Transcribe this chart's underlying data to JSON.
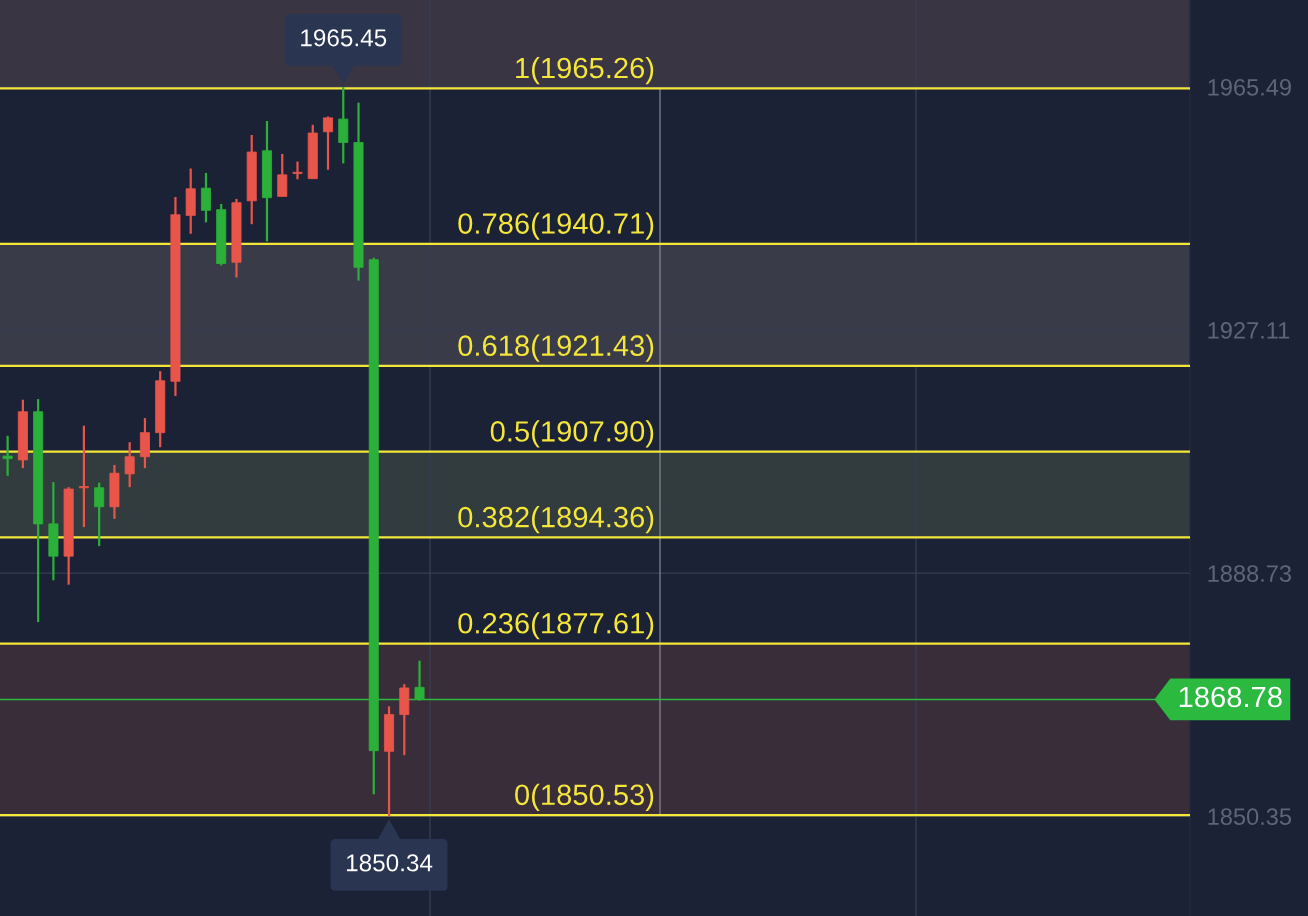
{
  "chart_data": {
    "type": "candlestick",
    "categories": [
      null,
      null,
      null,
      null,
      null,
      null,
      null,
      null,
      null,
      null,
      null,
      null,
      null,
      null,
      null,
      null,
      null,
      null,
      null,
      null,
      null,
      null,
      null,
      null,
      null,
      null,
      null,
      null,
      null,
      null,
      null,
      null,
      null,
      null,
      null,
      null,
      null,
      null,
      null,
      null,
      null,
      null,
      null,
      null,
      null,
      null,
      null,
      null,
      null,
      null,
      null,
      null,
      null,
      null,
      null,
      null,
      null,
      null,
      null,
      null,
      null,
      null,
      null,
      null,
      null,
      null,
      null,
      null,
      null,
      null,
      null,
      null,
      null,
      null,
      null,
      null,
      null,
      null
    ],
    "ohlc": [
      [
        1907.2,
        1910.4,
        1904.1,
        1906.8
      ],
      [
        1906.6,
        1916.1,
        1905.3,
        1914.2
      ],
      [
        1914.2,
        1916.2,
        1881.0,
        1896.5
      ],
      [
        1896.5,
        1903.1,
        1887.6,
        1891.4
      ],
      [
        1891.4,
        1902.3,
        1886.9,
        1902.0
      ],
      [
        1902.2,
        1912.0,
        1896.0,
        1902.4
      ],
      [
        1902.2,
        1903.0,
        1893.0,
        1899.2
      ],
      [
        1899.2,
        1905.8,
        1897.3,
        1904.5
      ],
      [
        1904.4,
        1909.4,
        1902.3,
        1907.1
      ],
      [
        1907.1,
        1913.2,
        1905.3,
        1910.9
      ],
      [
        1910.9,
        1920.6,
        1908.6,
        1919.1
      ],
      [
        1919.0,
        1948.1,
        1916.7,
        1945.3
      ],
      [
        1945.2,
        1952.6,
        1942.3,
        1949.4
      ],
      [
        1949.5,
        1951.9,
        1944.1,
        1946.0
      ],
      [
        1946.1,
        1947.0,
        1937.3,
        1937.6
      ],
      [
        1937.8,
        1947.8,
        1935.4,
        1947.2
      ],
      [
        1947.5,
        1957.9,
        1943.8,
        1955.2
      ],
      [
        1955.4,
        1960.1,
        1941.1,
        1948.0
      ],
      [
        1948.2,
        1954.9,
        1948.2,
        1951.6
      ],
      [
        1951.8,
        1953.7,
        1950.9,
        1952.0
      ],
      [
        1951.0,
        1959.5,
        1951.0,
        1958.2
      ],
      [
        1958.4,
        1960.8,
        1952.4,
        1960.6
      ],
      [
        1960.4,
        1965.45,
        1953.4,
        1956.7
      ],
      [
        1956.7,
        1963.0,
        1934.9,
        1937.0
      ],
      [
        1938.2,
        1938.5,
        1853.8,
        1860.7
      ],
      [
        1860.6,
        1867.7,
        1850.34,
        1866.4
      ],
      [
        1866.4,
        1871.2,
        1860.0,
        1870.6
      ],
      [
        1870.7,
        1874.9,
        1868.6,
        1868.78
      ],
      null,
      null,
      null,
      null,
      null,
      null,
      null,
      null,
      null,
      null,
      null,
      null,
      null,
      null,
      null,
      null,
      null,
      null,
      null,
      null,
      null,
      null,
      null,
      null,
      null,
      null,
      null,
      null,
      null,
      null,
      null,
      null,
      null,
      null,
      null,
      null,
      null,
      null,
      null,
      null,
      null,
      null,
      null,
      null,
      null,
      null,
      null,
      null,
      null,
      null
    ],
    "colors": [
      "#2bb03a",
      "#e8554a",
      "#2bb03a",
      "#2bb03a",
      "#e8554a",
      "#e8554a",
      "#2bb03a",
      "#e8554a",
      "#e8554a",
      "#e8554a",
      "#e8554a",
      "#e8554a",
      "#e8554a",
      "#2bb03a",
      "#2bb03a",
      "#e8554a",
      "#e8554a",
      "#2bb03a",
      "#e8554a",
      "#e8554a",
      "#e8554a",
      "#e8554a",
      "#2bb03a",
      "#2bb03a",
      "#2bb03a",
      "#e8554a",
      "#e8554a",
      "#2bb03a",
      null,
      null,
      null,
      null,
      null,
      null,
      null,
      null,
      null,
      null,
      null,
      null,
      null,
      null,
      null,
      null,
      null,
      null,
      null,
      null,
      null,
      null,
      null,
      null,
      null,
      null,
      null,
      null,
      null,
      null,
      null,
      null,
      null,
      null,
      null,
      null,
      null,
      null,
      null,
      null,
      null,
      null,
      null,
      null,
      null,
      null,
      null,
      null,
      null,
      null
    ],
    "ylim": [
      1834.6,
      1979.2
    ],
    "yticks": [
      1965.49,
      1927.11,
      1888.73,
      1850.35
    ],
    "tick_labels": "y",
    "grid": "y",
    "ref_lines": [
      {
        "axis": "y",
        "value": 1965.26,
        "label": "1(1965.26)",
        "color": "#f5e63a"
      },
      {
        "axis": "y",
        "value": 1940.71,
        "label": "0.786(1940.71)",
        "color": "#f5e63a"
      },
      {
        "axis": "y",
        "value": 1921.43,
        "label": "0.618(1921.43)",
        "color": "#f5e63a"
      },
      {
        "axis": "y",
        "value": 1907.9,
        "label": "0.5(1907.90)",
        "color": "#f5e63a"
      },
      {
        "axis": "y",
        "value": 1894.36,
        "label": "0.382(1894.36)",
        "color": "#f5e63a"
      },
      {
        "axis": "y",
        "value": 1877.61,
        "label": "0.236(1877.61)",
        "color": "#f5e63a"
      },
      {
        "axis": "y",
        "value": 1850.53,
        "label": "0(1850.53)",
        "color": "#f5e63a"
      },
      {
        "axis": "y",
        "value": 1868.78,
        "label": "1868.78",
        "color": "#2bb940"
      }
    ],
    "bands": [
      {
        "axis": "y",
        "from": 1965.26,
        "to": 1979.2,
        "color": "#3a3543"
      },
      {
        "axis": "y",
        "from": 1921.43,
        "to": 1940.71,
        "color": "#3a3b48"
      },
      {
        "axis": "y",
        "from": 1894.36,
        "to": 1907.9,
        "color": "#323c3e"
      },
      {
        "axis": "y",
        "from": 1850.53,
        "to": 1877.61,
        "color": "#3a2d3a"
      }
    ],
    "annotations": [
      {
        "text": "1965.45",
        "y": 1965.45
      },
      {
        "text": "1850.34",
        "y": 1850.34
      }
    ]
  }
}
